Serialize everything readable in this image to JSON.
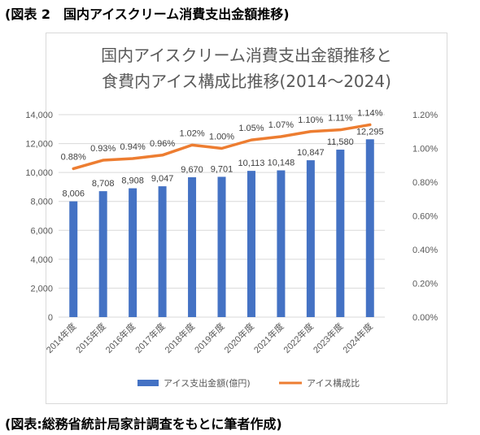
{
  "heading": "(図表 2　国内アイスクリーム消費支出金額推移)",
  "footer": "(図表:総務省統計局家計調査をもとに筆者作成)",
  "colors": {
    "bar": "#4472c4",
    "line": "#ed7d31",
    "grid": "#d9d9d9",
    "text": "#595959"
  },
  "chart_data": {
    "type": "bar",
    "title_lines": [
      "国内アイスクリーム消費支出金額推移と",
      "食費内アイス構成比推移(2014～2024)"
    ],
    "categories": [
      "2014年度",
      "2015年度",
      "2016年度",
      "2017年度",
      "2018年度",
      "2019年度",
      "2020年度",
      "2021年度",
      "2022年度",
      "2023年度",
      "2024年度"
    ],
    "y_left": {
      "ylim": [
        0,
        14000
      ],
      "ticks": [
        "0",
        "2,000",
        "4,000",
        "6,000",
        "8,000",
        "10,000",
        "12,000",
        "14,000"
      ]
    },
    "y_right": {
      "ylim": [
        0,
        1.2
      ],
      "ticks": [
        "0.00%",
        "0.20%",
        "0.40%",
        "0.60%",
        "0.80%",
        "1.00%",
        "1.20%"
      ]
    },
    "series": [
      {
        "name": "アイス支出金額(億円)",
        "type": "bar",
        "axis": "left",
        "values": [
          8006,
          8708,
          8908,
          9047,
          9670,
          9701,
          10113,
          10148,
          10847,
          11580,
          12295
        ],
        "labels": [
          "8,006",
          "8,708",
          "8,908",
          "9,047",
          "9,670",
          "9,701",
          "10,113",
          "10,148",
          "10,847",
          "11,580",
          "12,295"
        ]
      },
      {
        "name": "アイス構成比",
        "type": "line",
        "axis": "right",
        "values": [
          0.88,
          0.93,
          0.94,
          0.96,
          1.02,
          1.0,
          1.05,
          1.07,
          1.1,
          1.11,
          1.14
        ],
        "labels": [
          "0.88%",
          "0.93%",
          "0.94%",
          "0.96%",
          "1.02%",
          "1.00%",
          "1.05%",
          "1.07%",
          "1.10%",
          "1.11%",
          "1.14%"
        ]
      }
    ],
    "grid": true,
    "legend_position": "bottom"
  }
}
